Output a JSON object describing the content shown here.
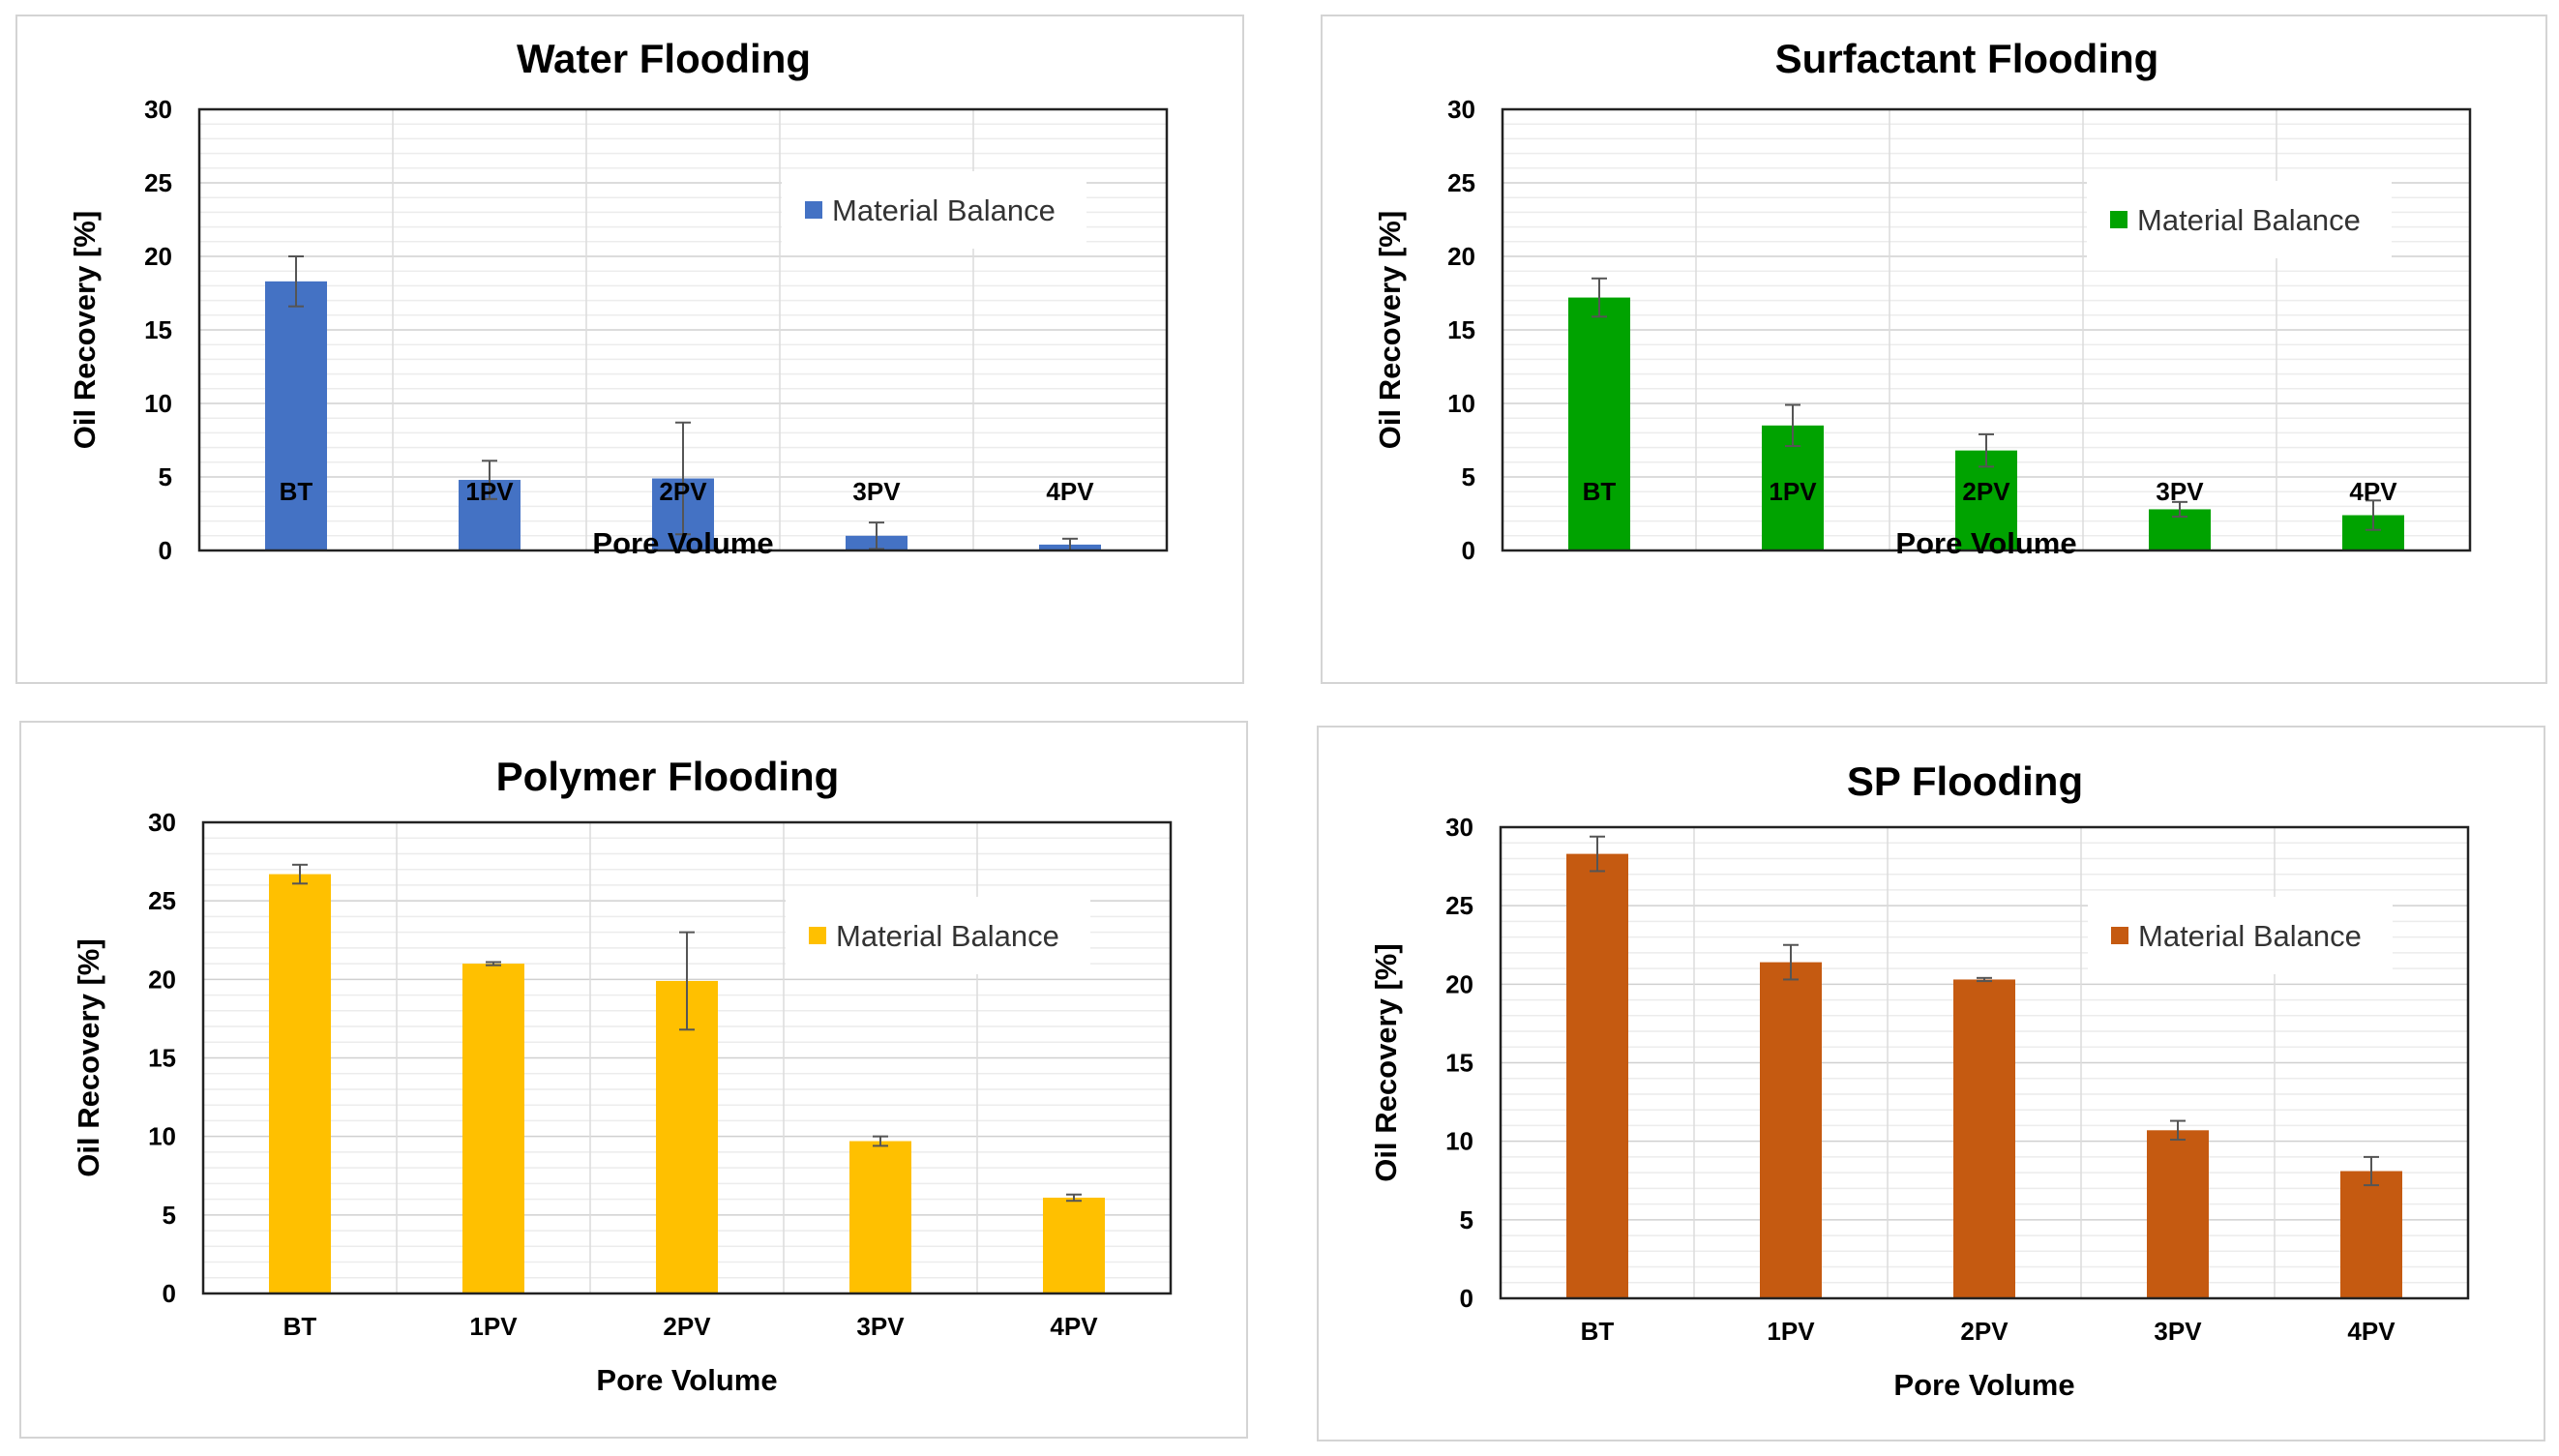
{
  "chart_data": [
    {
      "type": "bar",
      "title": "Water Flooding",
      "xlabel": "Pore Volume",
      "ylabel": "Oil Recovery [%]",
      "categories": [
        "BT",
        "1PV",
        "2PV",
        "3PV",
        "4PV"
      ],
      "ylim": [
        0,
        30
      ],
      "yticks": [
        0,
        5,
        10,
        15,
        20,
        25,
        30
      ],
      "series": [
        {
          "name": "Material Balance",
          "values": [
            18.3,
            4.8,
            4.9,
            1.0,
            0.4
          ],
          "errors": [
            1.7,
            1.3,
            3.8,
            0.9,
            0.4
          ]
        }
      ],
      "color": "#4472C4",
      "legend_position": "top-right",
      "grid": true
    },
    {
      "type": "bar",
      "title": "Surfactant Flooding",
      "xlabel": "Pore Volume",
      "ylabel": "Oil Recovery [%]",
      "categories": [
        "BT",
        "1PV",
        "2PV",
        "3PV",
        "4PV"
      ],
      "ylim": [
        0,
        30
      ],
      "yticks": [
        0,
        5,
        10,
        15,
        20,
        25,
        30
      ],
      "series": [
        {
          "name": "Material Balance",
          "values": [
            17.2,
            8.5,
            6.8,
            2.8,
            2.4
          ],
          "errors": [
            1.3,
            1.4,
            1.1,
            0.5,
            1.0
          ]
        }
      ],
      "color": "#00A300",
      "legend_position": "top-right",
      "grid": true
    },
    {
      "type": "bar",
      "title": "Polymer Flooding",
      "xlabel": "Pore Volume",
      "ylabel": "Oil Recovery [%]",
      "categories": [
        "BT",
        "1PV",
        "2PV",
        "3PV",
        "4PV"
      ],
      "ylim": [
        0,
        30
      ],
      "yticks": [
        0,
        5,
        10,
        15,
        20,
        25,
        30
      ],
      "series": [
        {
          "name": "Material Balance",
          "values": [
            26.7,
            21.0,
            19.9,
            9.7,
            6.1
          ],
          "errors": [
            0.6,
            0.1,
            3.1,
            0.3,
            0.2
          ]
        }
      ],
      "color": "#FFC000",
      "legend_position": "top-right",
      "grid": true
    },
    {
      "type": "bar",
      "title": "SP Flooding",
      "xlabel": "Pore Volume",
      "ylabel": "Oil Recovery [%]",
      "categories": [
        "BT",
        "1PV",
        "2PV",
        "3PV",
        "4PV"
      ],
      "ylim": [
        0,
        30
      ],
      "yticks": [
        0,
        5,
        10,
        15,
        20,
        25,
        30
      ],
      "series": [
        {
          "name": "Material Balance",
          "values": [
            28.3,
            21.4,
            20.3,
            10.7,
            8.1
          ],
          "errors": [
            1.1,
            1.1,
            0.1,
            0.6,
            0.9
          ]
        }
      ],
      "color": "#C55A11",
      "legend_position": "top-right",
      "grid": true
    }
  ]
}
